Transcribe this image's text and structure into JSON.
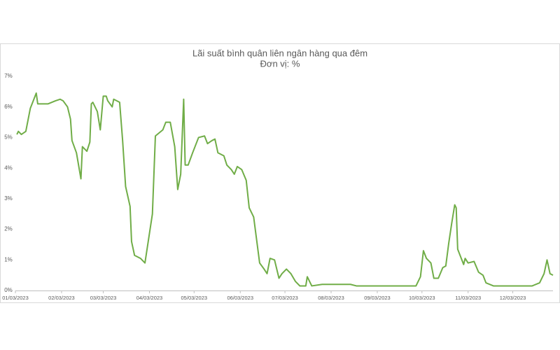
{
  "chart_data": {
    "type": "line",
    "title": "Lãi suất bình quân liên ngân hàng qua đêm",
    "subtitle": "Đơn vị: %",
    "color": "#70ad47",
    "x": [
      "2023-01-04",
      "2023-01-05",
      "2023-01-07",
      "2023-01-10",
      "2023-01-13",
      "2023-01-15",
      "2023-01-17",
      "2023-01-18",
      "2023-01-25",
      "2023-01-30",
      "2023-02-02",
      "2023-02-04",
      "2023-02-07",
      "2023-02-09",
      "2023-02-10",
      "2023-02-13",
      "2023-02-16",
      "2023-02-17",
      "2023-02-20",
      "2023-02-22",
      "2023-02-23",
      "2023-02-24",
      "2023-02-27",
      "2023-03-01",
      "2023-03-03",
      "2023-03-05",
      "2023-03-06",
      "2023-03-09",
      "2023-03-10",
      "2023-03-14",
      "2023-03-16",
      "2023-03-18",
      "2023-03-21",
      "2023-03-22",
      "2023-03-24",
      "2023-03-28",
      "2023-03-31",
      "2023-04-05",
      "2023-04-07",
      "2023-04-12",
      "2023-04-14",
      "2023-04-17",
      "2023-04-20",
      "2023-04-22",
      "2023-04-24",
      "2023-04-26",
      "2023-04-27",
      "2023-04-29",
      "2023-05-02",
      "2023-05-06",
      "2023-05-10",
      "2023-05-12",
      "2023-05-15",
      "2023-05-17",
      "2023-05-19",
      "2023-05-23",
      "2023-05-25",
      "2023-05-28",
      "2023-05-30",
      "2023-06-01",
      "2023-06-04",
      "2023-06-07",
      "2023-06-09",
      "2023-06-12",
      "2023-06-16",
      "2023-06-19",
      "2023-06-21",
      "2023-06-23",
      "2023-06-26",
      "2023-06-29",
      "2023-07-01",
      "2023-07-04",
      "2023-07-07",
      "2023-07-10",
      "2023-07-13",
      "2023-07-17",
      "2023-07-18",
      "2023-07-21",
      "2023-07-28",
      "2023-08-01",
      "2023-08-16",
      "2023-08-20",
      "2023-09-03",
      "2023-09-17",
      "2023-09-29",
      "2023-10-02",
      "2023-10-04",
      "2023-10-06",
      "2023-10-09",
      "2023-10-11",
      "2023-10-14",
      "2023-10-17",
      "2023-10-19",
      "2023-10-21",
      "2023-10-23",
      "2023-10-25",
      "2023-10-26",
      "2023-10-27",
      "2023-10-31",
      "2023-11-01",
      "2023-11-03",
      "2023-11-07",
      "2023-11-10",
      "2023-11-13",
      "2023-11-15",
      "2023-11-20",
      "2023-12-02",
      "2023-12-16",
      "2023-12-21",
      "2023-12-24",
      "2023-12-26",
      "2023-12-28",
      "2023-12-30"
    ],
    "values": [
      5.1,
      5.2,
      5.1,
      5.2,
      5.95,
      6.2,
      6.45,
      6.1,
      6.1,
      6.2,
      6.25,
      6.2,
      6.0,
      5.6,
      4.9,
      4.5,
      3.65,
      4.7,
      4.55,
      4.85,
      6.1,
      6.15,
      5.85,
      5.25,
      6.35,
      6.35,
      6.2,
      6.0,
      6.25,
      6.15,
      4.9,
      3.4,
      2.75,
      1.6,
      1.15,
      1.05,
      0.9,
      2.5,
      5.05,
      5.25,
      5.5,
      5.5,
      4.7,
      3.3,
      3.8,
      6.25,
      4.1,
      4.1,
      4.5,
      5.0,
      5.05,
      4.8,
      4.9,
      4.95,
      4.5,
      4.4,
      4.1,
      3.95,
      3.8,
      4.05,
      3.95,
      3.6,
      2.7,
      2.4,
      0.9,
      0.7,
      0.55,
      1.05,
      1.0,
      0.4,
      0.55,
      0.7,
      0.55,
      0.3,
      0.15,
      0.15,
      0.45,
      0.15,
      0.2,
      0.2,
      0.2,
      0.15,
      0.15,
      0.15,
      0.15,
      0.45,
      1.3,
      1.05,
      0.9,
      0.4,
      0.4,
      0.75,
      0.8,
      1.55,
      2.2,
      2.8,
      2.7,
      1.35,
      0.85,
      1.05,
      0.9,
      0.95,
      0.6,
      0.5,
      0.25,
      0.15,
      0.15,
      0.15,
      0.25,
      0.55,
      1.0,
      0.55,
      0.5
    ],
    "xlim": [
      "2023-01-03",
      "2023-12-30"
    ],
    "xticks": [
      {
        "value": "2023-01-03",
        "label": "01/03/2023"
      },
      {
        "value": "2023-02-03",
        "label": "02/03/2023"
      },
      {
        "value": "2023-03-03",
        "label": "03/03/2023"
      },
      {
        "value": "2023-04-03",
        "label": "04/03/2023"
      },
      {
        "value": "2023-05-03",
        "label": "05/03/2023"
      },
      {
        "value": "2023-06-03",
        "label": "06/03/2023"
      },
      {
        "value": "2023-07-03",
        "label": "07/03/2023"
      },
      {
        "value": "2023-08-03",
        "label": "08/03/2023"
      },
      {
        "value": "2023-09-03",
        "label": "09/03/2023"
      },
      {
        "value": "2023-10-03",
        "label": "10/03/2023"
      },
      {
        "value": "2023-11-03",
        "label": "11/03/2023"
      },
      {
        "value": "2023-12-03",
        "label": "12/03/2023"
      }
    ],
    "ylim": [
      0,
      7
    ],
    "yticks": [
      {
        "value": 0,
        "label": "0%"
      },
      {
        "value": 1,
        "label": "1%"
      },
      {
        "value": 2,
        "label": "2%"
      },
      {
        "value": 3,
        "label": "3%"
      },
      {
        "value": 4,
        "label": "4%"
      },
      {
        "value": 5,
        "label": "5%"
      },
      {
        "value": 6,
        "label": "6%"
      },
      {
        "value": 7,
        "label": "7%"
      }
    ],
    "grid": false
  }
}
